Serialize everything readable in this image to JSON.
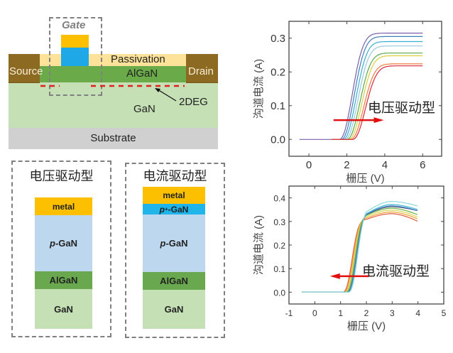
{
  "device": {
    "gate_label": "Gate",
    "passivation_label": "Passivation",
    "algan_label": "AlGaN",
    "source_label": "Source",
    "drain_label": "Drain",
    "gan_label": "GaN",
    "twodeg_label": "2DEG",
    "substrate_label": "Substrate",
    "colors": {
      "contact": "#8c6a22",
      "passivation": "#fde39a",
      "algan": "#6aaa48",
      "gan": "#c5e0b4",
      "substrate": "#d0d0d0",
      "gate_metal": "#fcc000",
      "gate_pgan": "#1fa8e8",
      "twodeg": "#e02020",
      "dash_box": "#808080"
    }
  },
  "stacks": {
    "voltage_driven": {
      "title": "电压驱动型",
      "layers": [
        {
          "label": "metal",
          "color": "#fcc000"
        },
        {
          "label_prefix": "p",
          "label": "-GaN",
          "color": "#bdd7ee"
        },
        {
          "label": "AlGaN",
          "color": "#6aa84f"
        },
        {
          "label": "GaN",
          "color": "#c5e0b4"
        }
      ]
    },
    "current_driven": {
      "title": "电流驱动型",
      "layers": [
        {
          "label": "metal",
          "color": "#fcc000"
        },
        {
          "label_prefix": "p",
          "label_sup": "+",
          "label": "-GaN",
          "color": "#1fb4ea"
        },
        {
          "label_prefix": "p",
          "label": "-GaN",
          "color": "#bdd7ee"
        },
        {
          "label": "AlGaN",
          "color": "#6aa84f"
        },
        {
          "label": "GaN",
          "color": "#c5e0b4"
        }
      ]
    }
  },
  "chart_data": [
    {
      "type": "line",
      "title": "",
      "annotation": "电压驱动型",
      "annotation_arrow": "right",
      "xlabel": "栅压 (V)",
      "ylabel": "沟道电流 (A)",
      "xlim": [
        -1.05,
        7
      ],
      "ylim": [
        -0.05,
        0.35
      ],
      "xticks": [
        0,
        2,
        4,
        6
      ],
      "xtick_labels": [
        "0",
        "2",
        "4",
        "6"
      ],
      "yticks": [
        0.0,
        0.1,
        0.2,
        0.3
      ],
      "ytick_labels": [
        "0.0",
        "0.1",
        "0.2",
        "0.3"
      ],
      "grid": false,
      "arrow_x": [
        1.3,
        3.8
      ],
      "arrow_y": 0.057,
      "series": [
        {
          "name": "curve1",
          "color": "#7a5fa8",
          "vth": 1.95,
          "isat": 0.315,
          "x": [
            -0.5,
            1.2,
            1.8,
            2.0,
            2.2,
            2.4,
            2.6,
            3.0,
            3.5,
            4.0,
            5.0,
            6.0
          ]
        },
        {
          "name": "curve2",
          "color": "#3f7fb8",
          "vth": 2.05,
          "isat": 0.305
        },
        {
          "name": "curve3",
          "color": "#3aaed0",
          "vth": 2.15,
          "isat": 0.29
        },
        {
          "name": "curve4",
          "color": "#9cc8e0",
          "vth": 2.25,
          "isat": 0.277
        },
        {
          "name": "curve5",
          "color": "#5aa84a",
          "vth": 2.35,
          "isat": 0.256
        },
        {
          "name": "curve6",
          "color": "#d8d040",
          "vth": 2.45,
          "isat": 0.248
        },
        {
          "name": "curve7",
          "color": "#f07a40",
          "vth": 2.55,
          "isat": 0.224
        },
        {
          "name": "curve8",
          "color": "#d8283a",
          "vth": 2.65,
          "isat": 0.218
        }
      ]
    },
    {
      "type": "line",
      "title": "",
      "annotation": "电流驱动型",
      "annotation_arrow": "left",
      "xlabel": "栅压 (V)",
      "ylabel": "沟道电流 (A)",
      "xlim": [
        -1,
        5
      ],
      "ylim": [
        -0.05,
        0.45
      ],
      "xticks": [
        -1,
        0,
        1,
        2,
        3,
        4,
        5
      ],
      "xtick_labels": [
        "-1",
        "0",
        "1",
        "2",
        "3",
        "4",
        "5"
      ],
      "yticks": [
        0.0,
        0.1,
        0.2,
        0.3,
        0.4
      ],
      "ytick_labels": [
        "0.0",
        "0.1",
        "0.2",
        "0.3",
        "0.4"
      ],
      "grid": false,
      "arrow_x": [
        2.1,
        0.7
      ],
      "arrow_y": 0.068,
      "series": [
        {
          "name": "curve1",
          "color": "#e05a3a",
          "vth": 1.38,
          "ipeak": 0.333,
          "iend": 0.3
        },
        {
          "name": "curve2",
          "color": "#f0a030",
          "vth": 1.42,
          "ipeak": 0.34,
          "iend": 0.31
        },
        {
          "name": "curve3",
          "color": "#d8d850",
          "vth": 1.46,
          "ipeak": 0.348,
          "iend": 0.318
        },
        {
          "name": "curve4",
          "color": "#70b050",
          "vth": 1.5,
          "ipeak": 0.356,
          "iend": 0.328
        },
        {
          "name": "curve5",
          "color": "#606870",
          "vth": 1.54,
          "ipeak": 0.362,
          "iend": 0.345
        },
        {
          "name": "curve6",
          "color": "#3a78c8",
          "vth": 1.56,
          "ipeak": 0.366,
          "iend": 0.345
        },
        {
          "name": "curve7",
          "color": "#40b8d0",
          "vth": 1.58,
          "ipeak": 0.372,
          "iend": 0.35
        },
        {
          "name": "curve8",
          "color": "#90d8d8",
          "vth": 1.6,
          "ipeak": 0.385,
          "iend": 0.365
        }
      ]
    }
  ]
}
